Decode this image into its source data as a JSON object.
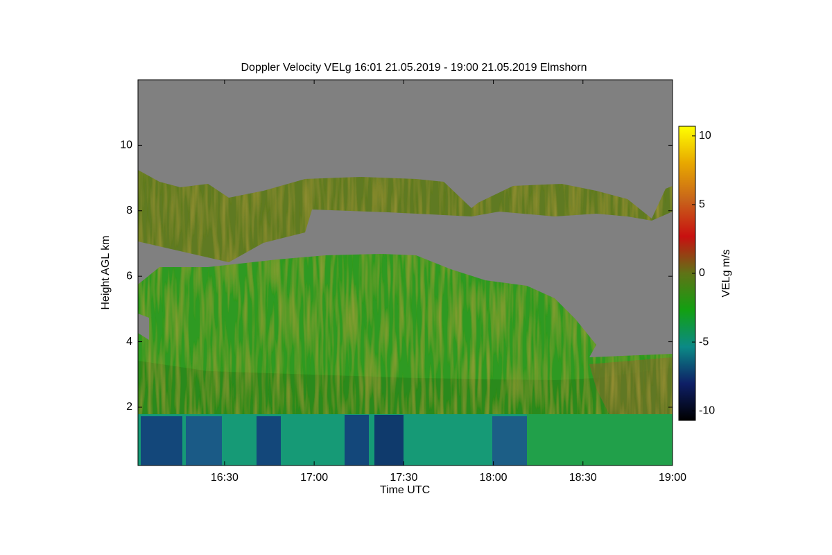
{
  "chart_data": {
    "type": "heatmap",
    "title": "Doppler Velocity VELg   16:01 21.05.2019 - 19:00 21.05.2019 Elmshorn",
    "x_label": "Time UTC",
    "y_label": "Height AGL km",
    "colorbar_label": "VELg m/s",
    "xlim": [
      961,
      1140
    ],
    "xticks": [
      {
        "value": 990,
        "label": "16:30"
      },
      {
        "value": 1020,
        "label": "17:00"
      },
      {
        "value": 1050,
        "label": "17:30"
      },
      {
        "value": 1080,
        "label": "18:00"
      },
      {
        "value": 1110,
        "label": "18:30"
      },
      {
        "value": 1140,
        "label": "19:00"
      }
    ],
    "ylim": [
      0.22,
      12
    ],
    "yticks": [
      2,
      4,
      6,
      8,
      10
    ],
    "clim": [
      -10.7,
      10.7
    ],
    "cticks": [
      -10,
      -5,
      0,
      5,
      10
    ],
    "colormap": [
      "#000000",
      "#0e1f66",
      "#0b8a86",
      "#12a012",
      "#5f7316",
      "#c81010",
      "#c8641a",
      "#e8a800",
      "#ffff00"
    ],
    "missing_color": "#808080"
  }
}
